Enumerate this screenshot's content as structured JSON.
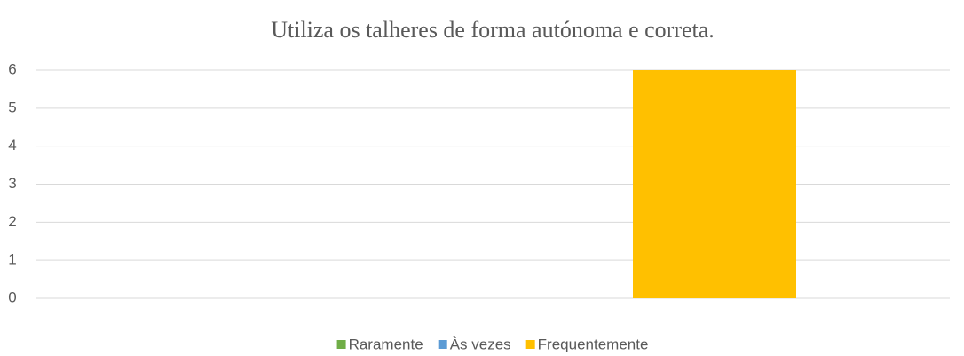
{
  "chart_data": {
    "type": "bar",
    "title": "Utiliza os talheres de forma autónoma e correta.",
    "categories": [
      null
    ],
    "series": [
      {
        "name": "Raramente",
        "color": "#70ad47",
        "values": [
          0
        ]
      },
      {
        "name": "Às vezes",
        "color": "#5b9bd5",
        "values": [
          0
        ]
      },
      {
        "name": "Frequentemente",
        "color": "#ffc000",
        "values": [
          6
        ]
      }
    ],
    "ylim": [
      0,
      6
    ],
    "yticks": [
      0,
      1,
      2,
      3,
      4,
      5,
      6
    ],
    "grid": true,
    "legend": "bottom"
  }
}
